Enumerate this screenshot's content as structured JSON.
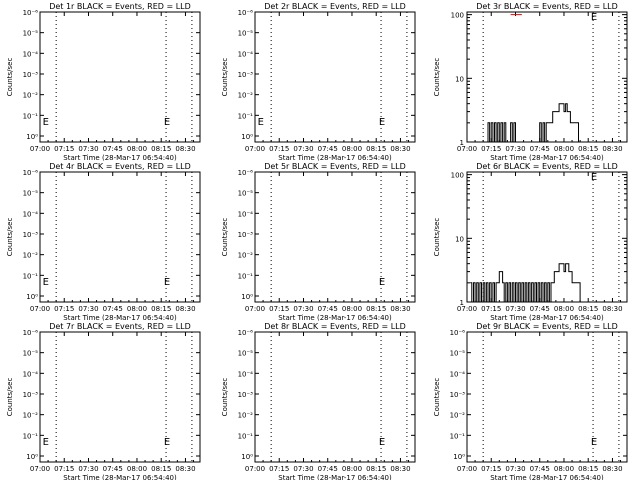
{
  "x_ticks": [
    "07:00",
    "07:15",
    "07:30",
    "07:45",
    "08:00",
    "08:15",
    "08:30"
  ],
  "xlabel": "Start Time (28-Mar-17 06:54:40)",
  "ylabel": "Counts/sec",
  "lin_ticks": [
    "10⁰",
    "10⁻¹",
    "10⁻²",
    "10⁻³",
    "10⁻⁴",
    "10⁻⁵",
    "10⁻⁶"
  ],
  "log_ticks": [
    "1",
    "10",
    "100"
  ],
  "chart_data": [
    {
      "type": "line",
      "title": "Det 1r BLACK = Events, RED = LLD",
      "xlabel": "Start Time (28-Mar-17 06:54:40)",
      "ylabel": "Counts/sec",
      "x_ticks": [
        "07:00",
        "07:15",
        "07:30",
        "07:45",
        "08:00",
        "08:15",
        "08:30"
      ],
      "y_scale": "linear-empty",
      "series": [],
      "dotted_lines_minutes": [
        10,
        78,
        94
      ],
      "E_markers_minutes": [
        1,
        76
      ]
    },
    {
      "type": "line",
      "title": "Det 2r BLACK = Events, RED = LLD",
      "xlabel": "Start Time (28-Mar-17 06:54:40)",
      "ylabel": "Counts/sec",
      "x_ticks": [
        "07:00",
        "07:15",
        "07:30",
        "07:45",
        "08:00",
        "08:15",
        "08:30"
      ],
      "y_scale": "linear-empty",
      "series": [],
      "dotted_lines_minutes": [
        10,
        78,
        94
      ],
      "E_markers_minutes": [
        1,
        76
      ]
    },
    {
      "type": "line",
      "title": "Det 3r BLACK = Events, RED = LLD",
      "xlabel": "Start Time (28-Mar-17 06:54:40)",
      "ylabel": "Counts/sec",
      "x_ticks": [
        "07:00",
        "07:15",
        "07:30",
        "07:45",
        "08:00",
        "08:15",
        "08:30"
      ],
      "y_scale": "log",
      "ylim": [
        1,
        110
      ],
      "dotted_lines_minutes": [
        10,
        78,
        94
      ],
      "E_markers_minutes": [
        76
      ],
      "series": [
        {
          "color": "#000000",
          "points": [
            [
              0,
              1
            ],
            [
              12,
              1
            ],
            [
              13,
              2
            ],
            [
              14,
              1
            ],
            [
              15,
              2
            ],
            [
              16,
              1
            ],
            [
              17,
              2
            ],
            [
              18,
              1
            ],
            [
              19,
              2
            ],
            [
              20,
              1
            ],
            [
              21,
              2
            ],
            [
              22,
              1
            ],
            [
              23,
              2
            ],
            [
              24,
              1
            ],
            [
              26,
              1
            ],
            [
              27,
              2
            ],
            [
              28,
              1
            ],
            [
              29,
              2
            ],
            [
              30,
              1
            ],
            [
              44,
              1
            ],
            [
              45,
              2
            ],
            [
              46,
              1
            ],
            [
              47,
              2
            ],
            [
              48,
              1
            ],
            [
              49,
              2
            ],
            [
              50,
              2
            ],
            [
              52,
              2
            ],
            [
              53,
              3
            ],
            [
              55,
              3
            ],
            [
              57,
              4
            ],
            [
              59,
              4
            ],
            [
              60,
              3
            ],
            [
              61,
              4
            ],
            [
              62,
              3
            ],
            [
              63,
              3
            ],
            [
              64,
              2
            ],
            [
              68,
              2
            ],
            [
              69,
              1
            ],
            [
              99,
              1
            ]
          ]
        },
        {
          "color": "#ff0000",
          "points": [
            [
              27,
              100
            ],
            [
              34,
              100
            ]
          ]
        }
      ]
    },
    {
      "type": "line",
      "title": "Det 4r BLACK = Events, RED = LLD",
      "xlabel": "Start Time (28-Mar-17 06:54:40)",
      "ylabel": "Counts/sec",
      "x_ticks": [
        "07:00",
        "07:15",
        "07:30",
        "07:45",
        "08:00",
        "08:15",
        "08:30"
      ],
      "y_scale": "linear-empty",
      "series": [],
      "dotted_lines_minutes": [
        10,
        78,
        94
      ],
      "E_markers_minutes": [
        1,
        76
      ]
    },
    {
      "type": "line",
      "title": "Det 5r BLACK = Events, RED = LLD",
      "xlabel": "Start Time (28-Mar-17 06:54:40)",
      "ylabel": "Counts/sec",
      "x_ticks": [
        "07:00",
        "07:15",
        "07:30",
        "07:45",
        "08:00",
        "08:15",
        "08:30"
      ],
      "y_scale": "linear-empty",
      "series": [],
      "dotted_lines_minutes": [
        10,
        78,
        94
      ],
      "E_markers_minutes": [
        76
      ]
    },
    {
      "type": "line",
      "title": "Det 6r BLACK = Events, RED = LLD",
      "xlabel": "Start Time (28-Mar-17 06:54:40)",
      "ylabel": "Counts/sec",
      "x_ticks": [
        "07:00",
        "07:15",
        "07:30",
        "07:45",
        "08:00",
        "08:15",
        "08:30"
      ],
      "y_scale": "log",
      "ylim": [
        1,
        110
      ],
      "dotted_lines_minutes": [
        10,
        78,
        94
      ],
      "E_markers_minutes": [
        76
      ],
      "series": [
        {
          "color": "#000000",
          "points": [
            [
              2,
              2
            ],
            [
              3,
              1
            ],
            [
              4,
              2
            ],
            [
              5,
              1
            ],
            [
              6,
              2
            ],
            [
              7,
              1
            ],
            [
              8,
              2
            ],
            [
              9,
              1
            ],
            [
              10,
              2
            ],
            [
              11,
              1
            ],
            [
              12,
              2
            ],
            [
              13,
              1
            ],
            [
              14,
              2
            ],
            [
              15,
              1
            ],
            [
              16,
              2
            ],
            [
              17,
              1
            ],
            [
              18,
              2
            ],
            [
              19,
              2
            ],
            [
              20,
              3
            ],
            [
              22,
              2
            ],
            [
              23,
              1
            ],
            [
              24,
              2
            ],
            [
              25,
              1
            ],
            [
              26,
              2
            ],
            [
              27,
              1
            ],
            [
              28,
              2
            ],
            [
              29,
              1
            ],
            [
              30,
              2
            ],
            [
              31,
              1
            ],
            [
              32,
              2
            ],
            [
              33,
              1
            ],
            [
              34,
              2
            ],
            [
              35,
              1
            ],
            [
              36,
              2
            ],
            [
              37,
              1
            ],
            [
              38,
              2
            ],
            [
              39,
              1
            ],
            [
              40,
              2
            ],
            [
              41,
              1
            ],
            [
              42,
              2
            ],
            [
              43,
              1
            ],
            [
              44,
              2
            ],
            [
              45,
              1
            ],
            [
              46,
              2
            ],
            [
              47,
              1
            ],
            [
              48,
              2
            ],
            [
              49,
              1
            ],
            [
              50,
              2
            ],
            [
              51,
              1
            ],
            [
              52,
              2
            ],
            [
              53,
              2
            ],
            [
              54,
              3
            ],
            [
              56,
              3
            ],
            [
              57,
              4
            ],
            [
              59,
              4
            ],
            [
              60,
              3
            ],
            [
              61,
              4
            ],
            [
              62,
              4
            ],
            [
              63,
              3
            ],
            [
              64,
              3
            ],
            [
              65,
              2
            ],
            [
              69,
              2
            ],
            [
              70,
              1
            ],
            [
              99,
              1
            ]
          ]
        }
      ]
    },
    {
      "type": "line",
      "title": "Det 7r BLACK = Events, RED = LLD",
      "xlabel": "Start Time (28-Mar-17 06:54:40)",
      "ylabel": "Counts/sec",
      "x_ticks": [
        "07:00",
        "07:15",
        "07:30",
        "07:45",
        "08:00",
        "08:15",
        "08:30"
      ],
      "y_scale": "linear-empty",
      "series": [],
      "dotted_lines_minutes": [
        10,
        78,
        94
      ],
      "E_markers_minutes": [
        1,
        76
      ]
    },
    {
      "type": "line",
      "title": "Det 8r BLACK = Events, RED = LLD",
      "xlabel": "Start Time (28-Mar-17 06:54:40)",
      "ylabel": "Counts/sec",
      "x_ticks": [
        "07:00",
        "07:15",
        "07:30",
        "07:45",
        "08:00",
        "08:15",
        "08:30"
      ],
      "y_scale": "linear-empty",
      "series": [],
      "dotted_lines_minutes": [
        10,
        78,
        94
      ],
      "E_markers_minutes": [
        76
      ]
    },
    {
      "type": "line",
      "title": "Det 9r BLACK = Events, RED = LLD",
      "xlabel": "Start Time (28-Mar-17 06:54:40)",
      "ylabel": "Counts/sec",
      "x_ticks": [
        "07:00",
        "07:15",
        "07:30",
        "07:45",
        "08:00",
        "08:15",
        "08:30"
      ],
      "y_scale": "linear-empty",
      "series": [],
      "dotted_lines_minutes": [
        10,
        78,
        94
      ],
      "E_markers_minutes": [
        76
      ]
    }
  ]
}
